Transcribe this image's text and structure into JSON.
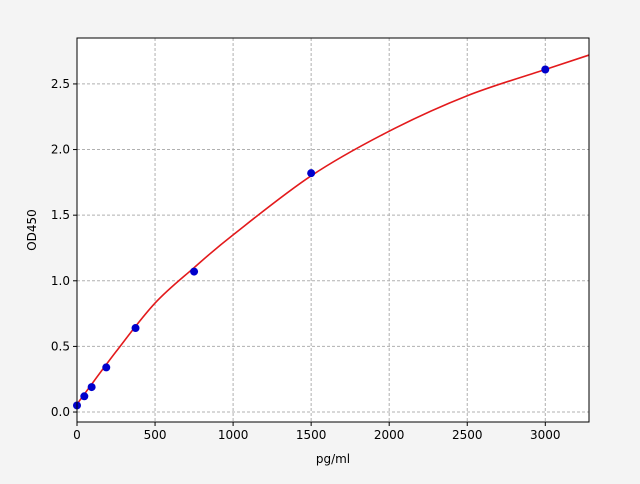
{
  "chart_data": {
    "type": "scatter",
    "title": "",
    "xlabel": "pg/ml",
    "ylabel": "OD450",
    "xlim": [
      0,
      3280
    ],
    "ylim": [
      -0.076,
      2.85
    ],
    "grid": true,
    "x_ticks": [
      0,
      500,
      1000,
      1500,
      2000,
      2500,
      3000
    ],
    "y_ticks": [
      0.0,
      0.5,
      1.0,
      1.5,
      2.0,
      2.5
    ],
    "x_tick_labels": [
      "0",
      "500",
      "1000",
      "1500",
      "2000",
      "2500",
      "3000"
    ],
    "y_tick_labels": [
      "0.0",
      "0.5",
      "1.0",
      "1.5",
      "2.0",
      "2.5"
    ],
    "series": [
      {
        "kind": "points",
        "color": "#0000cc",
        "x": [
          0,
          46.875,
          93.75,
          187.5,
          375,
          750,
          1500,
          3000
        ],
        "y": [
          0.05,
          0.12,
          0.19,
          0.34,
          0.64,
          1.07,
          1.82,
          2.61
        ]
      },
      {
        "kind": "fit-curve",
        "color": "#e31a1c",
        "x": [
          0,
          250,
          500,
          750,
          1000,
          1500,
          2000,
          2500,
          3000,
          3280
        ],
        "y": [
          0.06,
          0.46,
          0.83,
          1.1,
          1.35,
          1.8,
          2.14,
          2.41,
          2.61,
          2.72
        ]
      }
    ]
  }
}
